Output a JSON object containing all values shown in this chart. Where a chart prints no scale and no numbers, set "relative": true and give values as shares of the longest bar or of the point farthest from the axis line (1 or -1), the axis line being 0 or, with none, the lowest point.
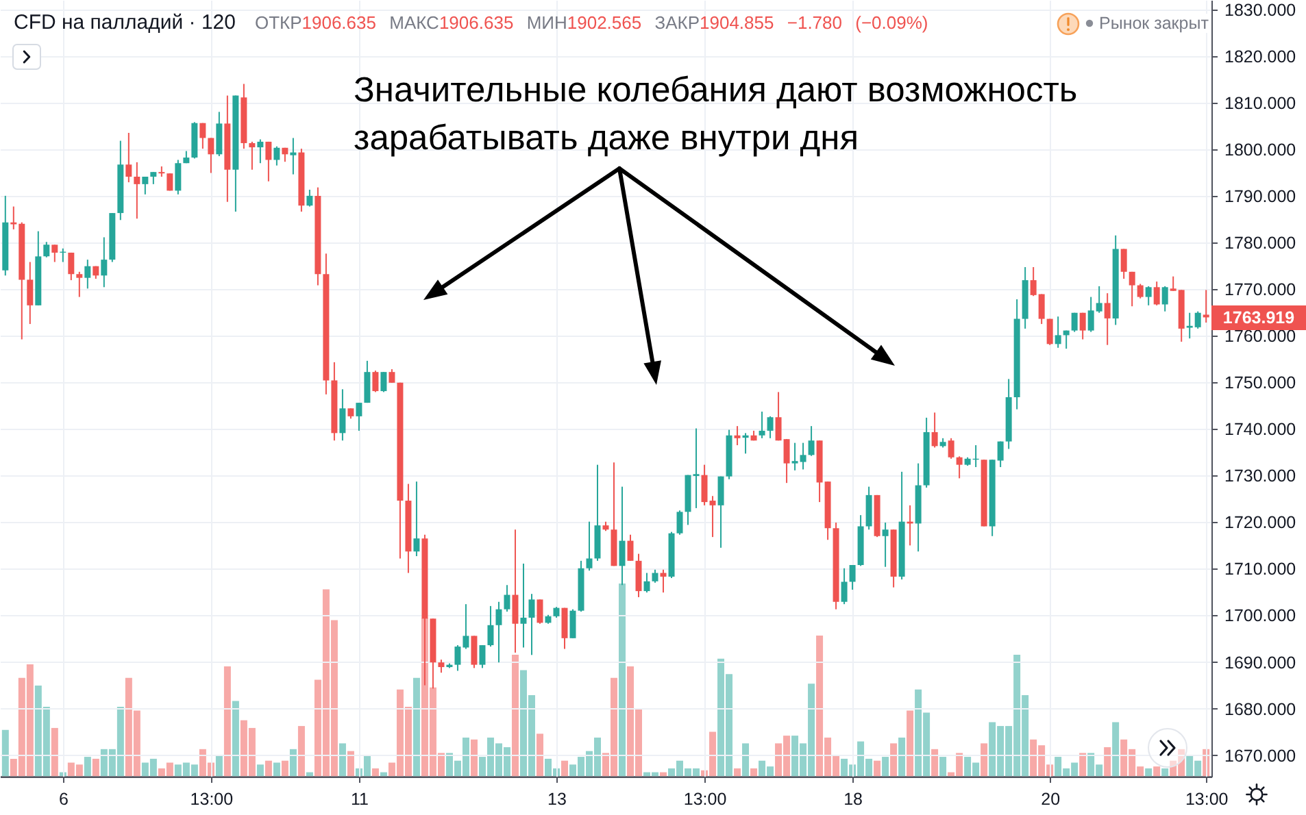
{
  "chart_data": [
    {
      "type": "candlestick",
      "title": "CFD на палладий · 120",
      "subtitle": "ОТКР1906.635 МАКС1906.635 МИН1902.565 ЗАКР1904.855 −1.780 (−0.09%)",
      "annotations": [
        "Значительные колебания дают возможность зарабатывать даже внутри дня",
        "Рынок закрыт",
        "1763.919"
      ],
      "categories": [
        null,
        null,
        null,
        null,
        null,
        null,
        null,
        "6",
        null,
        null,
        null,
        null,
        null,
        null,
        null,
        null,
        null,
        null,
        null,
        null,
        null,
        null,
        null,
        null,
        null,
        "13:00",
        null,
        null,
        null,
        null,
        null,
        null,
        null,
        null,
        null,
        null,
        null,
        null,
        null,
        null,
        null,
        null,
        null,
        "11",
        null,
        null,
        null,
        null,
        null,
        null,
        null,
        null,
        null,
        null,
        null,
        null,
        null,
        null,
        null,
        null,
        null,
        null,
        null,
        null,
        null,
        null,
        null,
        "13",
        null,
        null,
        null,
        null,
        null,
        null,
        null,
        null,
        null,
        null,
        null,
        null,
        null,
        null,
        null,
        null,
        null,
        "13:00",
        null,
        null,
        null,
        null,
        null,
        null,
        null,
        null,
        null,
        null,
        null,
        null,
        null,
        null,
        null,
        null,
        null,
        "18",
        null,
        null,
        null,
        null,
        null,
        null,
        null,
        null,
        null,
        null,
        null,
        null,
        null,
        null,
        null,
        null,
        null,
        null,
        null,
        null,
        null,
        null,
        null,
        "20",
        null,
        null,
        null,
        null,
        null,
        null,
        null,
        null,
        null,
        null,
        null,
        null,
        null,
        null,
        null,
        null,
        null,
        null,
        "13:00"
      ],
      "ohlc": [
        [
          1774.0,
          1790.0,
          1772.9,
          1784.3
        ],
        [
          1784.3,
          1787.7,
          1782.8,
          1783.9
        ],
        [
          1784.0,
          1784.3,
          1759.2,
          1772.0
        ],
        [
          1772.0,
          1775.8,
          1762.5,
          1766.5
        ],
        [
          1766.5,
          1782.4,
          1766.5,
          1777.0
        ],
        [
          1777.0,
          1780.1,
          1776.8,
          1779.5
        ],
        [
          1779.5,
          1779.5,
          1775.8,
          1777.8
        ],
        [
          1777.8,
          1778.7,
          1775.8,
          1778.0
        ],
        [
          1777.8,
          1777.8,
          1771.9,
          1773.2
        ],
        [
          1773.2,
          1773.7,
          1768.3,
          1772.4
        ],
        [
          1772.4,
          1776.3,
          1770.1,
          1774.9
        ],
        [
          1774.9,
          1774.9,
          1772.2,
          1772.9
        ],
        [
          1772.9,
          1781.1,
          1770.4,
          1776.3
        ],
        [
          1776.3,
          1786.3,
          1775.8,
          1786.3
        ],
        [
          1786.3,
          1801.8,
          1784.8,
          1796.7
        ],
        [
          1796.7,
          1803.5,
          1792.9,
          1794.1
        ],
        [
          1794.1,
          1797.2,
          1785.1,
          1792.5
        ],
        [
          1792.5,
          1794.1,
          1790.3,
          1794.1
        ],
        [
          1794.1,
          1795.1,
          1792.5,
          1795.1
        ],
        [
          1795.1,
          1796.3,
          1794.1,
          1794.8
        ],
        [
          1794.8,
          1794.8,
          1791.1,
          1791.1
        ],
        [
          1791.1,
          1797.7,
          1790.3,
          1797.0
        ],
        [
          1797.0,
          1799.6,
          1797.0,
          1798.2
        ],
        [
          1798.2,
          1805.8,
          1798.0,
          1805.6
        ],
        [
          1805.6,
          1805.6,
          1800.1,
          1802.4
        ],
        [
          1802.4,
          1802.4,
          1794.9,
          1798.9
        ],
        [
          1798.9,
          1808.0,
          1798.5,
          1805.5
        ],
        [
          1805.5,
          1811.5,
          1788.7,
          1795.6
        ],
        [
          1795.6,
          1811.5,
          1786.6,
          1811.5
        ],
        [
          1811.1,
          1814.0,
          1800.1,
          1801.3
        ],
        [
          1801.3,
          1801.6,
          1795.6,
          1800.4
        ],
        [
          1800.4,
          1802.1,
          1797.0,
          1801.6
        ],
        [
          1801.6,
          1801.6,
          1793.1,
          1797.7
        ],
        [
          1797.7,
          1800.6,
          1796.5,
          1800.3
        ],
        [
          1800.3,
          1800.3,
          1797.3,
          1798.9
        ],
        [
          1798.7,
          1802.4,
          1794.6,
          1799.3
        ],
        [
          1799.3,
          1800.1,
          1786.6,
          1787.9
        ],
        [
          1787.9,
          1791.3,
          1787.7,
          1790.0
        ],
        [
          1790.0,
          1791.8,
          1770.8,
          1773.2
        ],
        [
          1773.2,
          1777.6,
          1747.4,
          1750.4
        ],
        [
          1750.4,
          1754.3,
          1737.5,
          1739.1
        ],
        [
          1739.1,
          1748.5,
          1737.5,
          1744.4
        ],
        [
          1744.4,
          1744.4,
          1742.2,
          1742.7
        ],
        [
          1742.7,
          1745.6,
          1739.6,
          1745.6
        ],
        [
          1745.6,
          1754.6,
          1745.6,
          1752.2
        ],
        [
          1752.2,
          1752.5,
          1747.9,
          1748.1
        ],
        [
          1748.1,
          1752.2,
          1747.9,
          1752.2
        ],
        [
          1752.2,
          1752.8,
          1749.9,
          1749.9
        ],
        [
          1749.9,
          1749.9,
          1712.2,
          1724.6
        ],
        [
          1724.6,
          1728.2,
          1709.1,
          1713.7
        ],
        [
          1713.7,
          1728.7,
          1712.7,
          1716.5
        ],
        [
          1716.5,
          1717.3,
          1685.0,
          1699.3
        ],
        [
          1699.3,
          1699.3,
          1684.3,
          1689.9
        ],
        [
          1689.9,
          1690.5,
          1687.7,
          1688.9
        ],
        [
          1688.9,
          1689.7,
          1688.7,
          1689.4
        ],
        [
          1689.4,
          1693.6,
          1688.1,
          1693.3
        ],
        [
          1693.1,
          1702.4,
          1692.8,
          1695.6
        ],
        [
          1695.6,
          1695.6,
          1688.7,
          1689.4
        ],
        [
          1689.4,
          1693.6,
          1688.7,
          1693.6
        ],
        [
          1693.6,
          1702.0,
          1693.3,
          1697.9
        ],
        [
          1697.9,
          1702.9,
          1689.9,
          1701.3
        ],
        [
          1701.3,
          1706.5,
          1700.8,
          1704.4
        ],
        [
          1704.4,
          1718.4,
          1692.0,
          1698.2
        ],
        [
          1698.2,
          1711.1,
          1693.1,
          1699.5
        ],
        [
          1699.5,
          1704.6,
          1691.5,
          1703.4
        ],
        [
          1703.4,
          1703.4,
          1698.2,
          1698.4
        ],
        [
          1698.4,
          1700.1,
          1698.2,
          1699.8
        ],
        [
          1699.8,
          1701.8,
          1699.5,
          1701.6
        ],
        [
          1701.6,
          1701.6,
          1692.8,
          1695.1
        ],
        [
          1695.1,
          1701.3,
          1695.1,
          1701.0
        ],
        [
          1701.0,
          1711.7,
          1700.8,
          1710.1
        ],
        [
          1710.1,
          1720.1,
          1709.6,
          1712.2
        ],
        [
          1712.2,
          1732.3,
          1711.7,
          1719.3
        ],
        [
          1719.3,
          1720.1,
          1718.1,
          1718.4
        ],
        [
          1718.4,
          1732.8,
          1710.6,
          1710.6
        ],
        [
          1710.6,
          1727.6,
          1706.5,
          1716.0
        ],
        [
          1716.0,
          1717.3,
          1711.7,
          1711.7
        ],
        [
          1711.7,
          1713.2,
          1703.9,
          1705.2
        ],
        [
          1705.2,
          1709.1,
          1704.9,
          1707.3
        ],
        [
          1707.3,
          1709.8,
          1707.0,
          1709.1
        ],
        [
          1709.1,
          1709.8,
          1704.9,
          1708.3
        ],
        [
          1708.3,
          1717.9,
          1708.0,
          1717.6
        ],
        [
          1717.6,
          1722.5,
          1717.3,
          1722.2
        ],
        [
          1722.2,
          1730.1,
          1719.4,
          1730.1
        ],
        [
          1729.9,
          1740.1,
          1723.0,
          1730.3
        ],
        [
          1730.1,
          1732.3,
          1723.6,
          1724.3
        ],
        [
          1724.6,
          1725.6,
          1716.8,
          1723.6
        ],
        [
          1723.6,
          1729.8,
          1714.5,
          1729.8
        ],
        [
          1729.8,
          1739.8,
          1729.2,
          1738.6
        ],
        [
          1738.6,
          1740.6,
          1736.5,
          1738.0
        ],
        [
          1738.1,
          1739.1,
          1734.7,
          1738.6
        ],
        [
          1738.6,
          1739.6,
          1737.5,
          1737.5
        ],
        [
          1738.6,
          1743.7,
          1738.0,
          1739.6
        ],
        [
          1739.6,
          1742.7,
          1738.0,
          1742.5
        ],
        [
          1742.5,
          1747.9,
          1737.5,
          1737.5
        ],
        [
          1737.8,
          1737.8,
          1728.4,
          1732.6
        ],
        [
          1732.6,
          1737.0,
          1731.1,
          1733.1
        ],
        [
          1732.9,
          1737.0,
          1731.3,
          1734.4
        ],
        [
          1734.4,
          1740.6,
          1734.2,
          1737.5
        ],
        [
          1737.5,
          1737.5,
          1724.3,
          1728.5
        ],
        [
          1728.7,
          1728.7,
          1716.2,
          1718.7
        ],
        [
          1718.7,
          1719.9,
          1701.3,
          1702.9
        ],
        [
          1702.9,
          1710.1,
          1702.4,
          1707.2
        ],
        [
          1707.2,
          1710.8,
          1705.5,
          1710.8
        ],
        [
          1710.8,
          1721.5,
          1710.6,
          1719.1
        ],
        [
          1719.1,
          1727.6,
          1718.4,
          1725.8
        ],
        [
          1725.8,
          1725.8,
          1716.8,
          1717.0
        ],
        [
          1717.0,
          1719.9,
          1710.4,
          1718.4
        ],
        [
          1718.4,
          1718.4,
          1706.0,
          1708.3
        ],
        [
          1708.3,
          1730.8,
          1707.7,
          1720.1
        ],
        [
          1720.1,
          1723.6,
          1715.0,
          1719.7
        ],
        [
          1719.7,
          1732.6,
          1713.7,
          1727.9
        ],
        [
          1727.9,
          1742.4,
          1727.4,
          1739.3
        ],
        [
          1739.3,
          1743.5,
          1736.0,
          1736.3
        ],
        [
          1736.3,
          1738.0,
          1736.0,
          1737.2
        ],
        [
          1737.5,
          1738.0,
          1733.6,
          1733.9
        ],
        [
          1733.9,
          1734.1,
          1729.4,
          1732.3
        ],
        [
          1732.3,
          1733.9,
          1732.1,
          1733.6
        ],
        [
          1733.4,
          1736.5,
          1731.8,
          1733.6
        ],
        [
          1733.4,
          1733.4,
          1719.1,
          1719.1
        ],
        [
          1719.1,
          1733.4,
          1717.0,
          1733.4
        ],
        [
          1733.2,
          1737.3,
          1731.8,
          1737.3
        ],
        [
          1737.3,
          1750.7,
          1735.7,
          1746.8
        ],
        [
          1746.8,
          1767.8,
          1744.2,
          1763.6
        ],
        [
          1763.6,
          1774.7,
          1761.5,
          1771.9
        ],
        [
          1771.9,
          1774.7,
          1768.5,
          1768.7
        ],
        [
          1768.9,
          1768.9,
          1762.5,
          1763.6
        ],
        [
          1763.6,
          1763.6,
          1758.0,
          1758.2
        ],
        [
          1758.2,
          1764.1,
          1757.4,
          1760.1
        ],
        [
          1760.1,
          1761.1,
          1757.2,
          1761.1
        ],
        [
          1761.1,
          1764.9,
          1760.8,
          1764.9
        ],
        [
          1764.9,
          1764.9,
          1759.2,
          1761.1
        ],
        [
          1761.1,
          1768.3,
          1760.8,
          1765.4
        ],
        [
          1765.2,
          1770.6,
          1764.9,
          1767.0
        ],
        [
          1767.0,
          1769.1,
          1758.0,
          1763.7
        ],
        [
          1763.7,
          1781.5,
          1762.3,
          1778.6
        ],
        [
          1778.6,
          1778.6,
          1772.2,
          1773.7
        ],
        [
          1773.7,
          1773.7,
          1766.3,
          1770.8
        ],
        [
          1770.8,
          1771.1,
          1768.0,
          1768.3
        ],
        [
          1768.3,
          1770.6,
          1766.5,
          1770.4
        ],
        [
          1770.4,
          1771.6,
          1766.5,
          1766.7
        ],
        [
          1766.7,
          1770.6,
          1765.2,
          1770.4
        ],
        [
          1770.1,
          1772.7,
          1769.6,
          1769.6
        ],
        [
          1769.8,
          1769.8,
          1758.7,
          1761.5
        ],
        [
          1761.7,
          1764.9,
          1759.4,
          1762.1
        ],
        [
          1761.8,
          1765.2,
          1761.5,
          1764.9
        ],
        [
          1764.5,
          1769.8,
          1762.8,
          1763.919
        ]
      ],
      "colors": [
        "#26a69a",
        "#ef5350",
        "#ef5350",
        "#ef5350",
        "#26a69a",
        "#26a69a",
        "#ef5350",
        "#26a69a",
        "#ef5350",
        "#ef5350",
        "#26a69a",
        "#ef5350",
        "#26a69a",
        "#26a69a",
        "#26a69a",
        "#ef5350",
        "#ef5350",
        "#26a69a",
        "#26a69a",
        "#ef5350",
        "#ef5350",
        "#26a69a",
        "#26a69a",
        "#26a69a",
        "#ef5350",
        "#ef5350",
        "#26a69a",
        "#ef5350",
        "#26a69a",
        "#ef5350",
        "#ef5350",
        "#26a69a",
        "#ef5350",
        "#26a69a",
        "#ef5350",
        "#26a69a",
        "#ef5350",
        "#26a69a",
        "#ef5350",
        "#ef5350",
        "#ef5350",
        "#26a69a",
        "#ef5350",
        "#26a69a",
        "#26a69a",
        "#ef5350",
        "#26a69a",
        "#ef5350",
        "#ef5350",
        "#ef5350",
        "#26a69a",
        "#ef5350",
        "#ef5350",
        "#ef5350",
        "#26a69a",
        "#26a69a",
        "#26a69a",
        "#ef5350",
        "#26a69a",
        "#26a69a",
        "#26a69a",
        "#26a69a",
        "#ef5350",
        "#26a69a",
        "#26a69a",
        "#ef5350",
        "#26a69a",
        "#26a69a",
        "#ef5350",
        "#26a69a",
        "#26a69a",
        "#26a69a",
        "#26a69a",
        "#ef5350",
        "#ef5350",
        "#26a69a",
        "#ef5350",
        "#ef5350",
        "#26a69a",
        "#26a69a",
        "#ef5350",
        "#26a69a",
        "#26a69a",
        "#26a69a",
        "#26a69a",
        "#ef5350",
        "#ef5350",
        "#26a69a",
        "#26a69a",
        "#ef5350",
        "#26a69a",
        "#ef5350",
        "#26a69a",
        "#26a69a",
        "#ef5350",
        "#ef5350",
        "#26a69a",
        "#26a69a",
        "#26a69a",
        "#ef5350",
        "#ef5350",
        "#ef5350",
        "#26a69a",
        "#26a69a",
        "#26a69a",
        "#26a69a",
        "#ef5350",
        "#26a69a",
        "#ef5350",
        "#26a69a",
        "#ef5350",
        "#26a69a",
        "#26a69a",
        "#ef5350",
        "#26a69a",
        "#ef5350",
        "#ef5350",
        "#26a69a",
        "#26a69a",
        "#ef5350",
        "#26a69a",
        "#26a69a",
        "#26a69a",
        "#26a69a",
        "#26a69a",
        "#ef5350",
        "#ef5350",
        "#ef5350",
        "#26a69a",
        "#26a69a",
        "#26a69a",
        "#ef5350",
        "#26a69a",
        "#26a69a",
        "#ef5350",
        "#26a69a",
        "#ef5350",
        "#ef5350",
        "#ef5350",
        "#26a69a",
        "#ef5350",
        "#26a69a",
        "#ef5350",
        "#ef5350",
        "#26a69a",
        "#26a69a",
        "#ef5350"
      ],
      "ylim": [
        1665.4,
        1832
      ],
      "yticks": [
        {
          "value": 1670,
          "label": "1670.000"
        },
        {
          "value": 1680,
          "label": "1680.000"
        },
        {
          "value": 1690,
          "label": "1690.000"
        },
        {
          "value": 1700,
          "label": "1700.000"
        },
        {
          "value": 1710,
          "label": "1710.000"
        },
        {
          "value": 1720,
          "label": "1720.000"
        },
        {
          "value": 1730,
          "label": "1730.000"
        },
        {
          "value": 1740,
          "label": "1740.000"
        },
        {
          "value": 1750,
          "label": "1750.000"
        },
        {
          "value": 1760,
          "label": "1760.000"
        },
        {
          "value": 1770,
          "label": "1770.000"
        },
        {
          "value": 1780,
          "label": "1780.000"
        },
        {
          "value": 1790,
          "label": "1790.000"
        },
        {
          "value": 1800,
          "label": "1800.000"
        },
        {
          "value": 1810,
          "label": "1810.000"
        },
        {
          "value": 1820,
          "label": "1820.000"
        },
        {
          "value": 1830,
          "label": "1830.000"
        }
      ],
      "grid": true
    },
    {
      "type": "bar",
      "relative": true,
      "categories": [
        null,
        null,
        null,
        null,
        null,
        null,
        null,
        null,
        null,
        null,
        null,
        null,
        null,
        null,
        null,
        null,
        null,
        null,
        null,
        null,
        null,
        null,
        null,
        null,
        null,
        null,
        null,
        null,
        null,
        null,
        null,
        null,
        null,
        null,
        null,
        null,
        null,
        null,
        null,
        null,
        null,
        null,
        null,
        null,
        null,
        null,
        null,
        null,
        null,
        null,
        null,
        null,
        null,
        null,
        null,
        null,
        null,
        null,
        null,
        null,
        null,
        null,
        null,
        null,
        null,
        null,
        null,
        null,
        null,
        null,
        null,
        null,
        null,
        null,
        null,
        null,
        null,
        null,
        null,
        null,
        null,
        null,
        null,
        null,
        null,
        null,
        null,
        null,
        null,
        null,
        null,
        null,
        null,
        null,
        null,
        null,
        null,
        null,
        null,
        null,
        null,
        null,
        null,
        null,
        null,
        null,
        null,
        null,
        null,
        null,
        null,
        null,
        null,
        null,
        null,
        null,
        null,
        null,
        null,
        null,
        null,
        null,
        null,
        null,
        null,
        null,
        null,
        null,
        null,
        null,
        null,
        null,
        null,
        null,
        null,
        null,
        null,
        null,
        null,
        null,
        null,
        null,
        null,
        null,
        null,
        null,
        null
      ],
      "values": [
        0.24,
        0.09,
        0.51,
        0.58,
        0.47,
        0.36,
        0.25,
        0.02,
        0.07,
        0.06,
        0.1,
        0.09,
        0.14,
        0.14,
        0.36,
        0.51,
        0.34,
        0.07,
        0.09,
        0.04,
        0.07,
        0.06,
        0.07,
        0.06,
        0.14,
        0.07,
        0.11,
        0.57,
        0.39,
        0.29,
        0.25,
        0.06,
        0.08,
        0.07,
        0.08,
        0.14,
        0.26,
        0.02,
        0.5,
        0.97,
        0.81,
        0.17,
        0.13,
        0.04,
        0.11,
        0.04,
        0.02,
        0.07,
        0.45,
        0.36,
        0.51,
        0.82,
        0.46,
        0.12,
        0.12,
        0.08,
        0.2,
        0.19,
        0.1,
        0.2,
        0.17,
        0.15,
        0.63,
        0.55,
        0.42,
        0.22,
        0.09,
        0.04,
        0.08,
        0.06,
        0.1,
        0.13,
        0.2,
        0.12,
        0.51,
        1,
        0.57,
        0.35,
        0.02,
        0.02,
        0.02,
        0.04,
        0.08,
        0.04,
        0.04,
        0.03,
        0.23,
        0.61,
        0.53,
        0.04,
        0.17,
        0.04,
        0.08,
        0.05,
        0.17,
        0.21,
        0.21,
        0.17,
        0.48,
        0.73,
        0.2,
        0.11,
        0.09,
        0.06,
        0.18,
        0.09,
        0.08,
        0.1,
        0.17,
        0.2,
        0.34,
        0.45,
        0.33,
        0.14,
        0.1,
        0.02,
        0.12,
        0.1,
        0.07,
        0.17,
        0.28,
        0.26,
        0.26,
        0.63,
        0.42,
        0.19,
        0.16,
        0.06,
        0.1,
        0.04,
        0.07,
        0.12,
        0.12,
        0.06,
        0.15,
        0.28,
        0.19,
        0.14,
        0.05,
        0.04,
        0.05,
        0.04,
        0.08,
        0.14,
        0.11,
        0.08,
        0.14
      ],
      "colors": [
        "#92d2cc",
        "#f7a9a7",
        "#f7a9a7",
        "#f7a9a7",
        "#92d2cc",
        "#92d2cc",
        "#f7a9a7",
        "#92d2cc",
        "#f7a9a7",
        "#f7a9a7",
        "#92d2cc",
        "#f7a9a7",
        "#92d2cc",
        "#92d2cc",
        "#92d2cc",
        "#f7a9a7",
        "#f7a9a7",
        "#92d2cc",
        "#92d2cc",
        "#f7a9a7",
        "#f7a9a7",
        "#92d2cc",
        "#92d2cc",
        "#92d2cc",
        "#f7a9a7",
        "#f7a9a7",
        "#92d2cc",
        "#f7a9a7",
        "#92d2cc",
        "#f7a9a7",
        "#f7a9a7",
        "#92d2cc",
        "#f7a9a7",
        "#92d2cc",
        "#f7a9a7",
        "#92d2cc",
        "#f7a9a7",
        "#92d2cc",
        "#f7a9a7",
        "#f7a9a7",
        "#f7a9a7",
        "#92d2cc",
        "#f7a9a7",
        "#92d2cc",
        "#92d2cc",
        "#f7a9a7",
        "#92d2cc",
        "#f7a9a7",
        "#f7a9a7",
        "#f7a9a7",
        "#92d2cc",
        "#f7a9a7",
        "#f7a9a7",
        "#f7a9a7",
        "#92d2cc",
        "#92d2cc",
        "#92d2cc",
        "#f7a9a7",
        "#92d2cc",
        "#92d2cc",
        "#92d2cc",
        "#92d2cc",
        "#f7a9a7",
        "#92d2cc",
        "#92d2cc",
        "#f7a9a7",
        "#92d2cc",
        "#92d2cc",
        "#f7a9a7",
        "#92d2cc",
        "#92d2cc",
        "#92d2cc",
        "#92d2cc",
        "#f7a9a7",
        "#f7a9a7",
        "#92d2cc",
        "#f7a9a7",
        "#f7a9a7",
        "#92d2cc",
        "#92d2cc",
        "#f7a9a7",
        "#92d2cc",
        "#92d2cc",
        "#92d2cc",
        "#92d2cc",
        "#f7a9a7",
        "#f7a9a7",
        "#92d2cc",
        "#92d2cc",
        "#f7a9a7",
        "#92d2cc",
        "#f7a9a7",
        "#92d2cc",
        "#92d2cc",
        "#f7a9a7",
        "#f7a9a7",
        "#92d2cc",
        "#92d2cc",
        "#92d2cc",
        "#f7a9a7",
        "#f7a9a7",
        "#f7a9a7",
        "#92d2cc",
        "#92d2cc",
        "#92d2cc",
        "#92d2cc",
        "#f7a9a7",
        "#92d2cc",
        "#f7a9a7",
        "#92d2cc",
        "#f7a9a7",
        "#92d2cc",
        "#92d2cc",
        "#f7a9a7",
        "#92d2cc",
        "#f7a9a7",
        "#f7a9a7",
        "#92d2cc",
        "#92d2cc",
        "#f7a9a7",
        "#92d2cc",
        "#92d2cc",
        "#92d2cc",
        "#92d2cc",
        "#92d2cc",
        "#f7a9a7",
        "#f7a9a7",
        "#f7a9a7",
        "#92d2cc",
        "#92d2cc",
        "#92d2cc",
        "#f7a9a7",
        "#92d2cc",
        "#92d2cc",
        "#f7a9a7",
        "#92d2cc",
        "#f7a9a7",
        "#f7a9a7",
        "#f7a9a7",
        "#92d2cc",
        "#f7a9a7",
        "#92d2cc",
        "#f7a9a7",
        "#f7a9a7",
        "#92d2cc",
        "#92d2cc",
        "#f7a9a7"
      ]
    }
  ]
}
